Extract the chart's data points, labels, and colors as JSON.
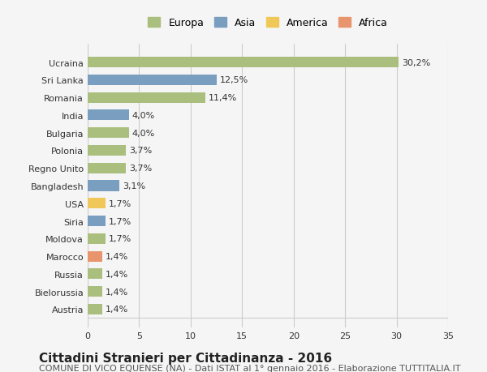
{
  "categories": [
    "Austria",
    "Bielorussia",
    "Russia",
    "Marocco",
    "Moldova",
    "Siria",
    "USA",
    "Bangladesh",
    "Regno Unito",
    "Polonia",
    "Bulgaria",
    "India",
    "Romania",
    "Sri Lanka",
    "Ucraina"
  ],
  "values": [
    1.4,
    1.4,
    1.4,
    1.4,
    1.7,
    1.7,
    1.7,
    3.1,
    3.7,
    3.7,
    4.0,
    4.0,
    11.4,
    12.5,
    30.2
  ],
  "labels": [
    "1,4%",
    "1,4%",
    "1,4%",
    "1,4%",
    "1,7%",
    "1,7%",
    "1,7%",
    "3,1%",
    "3,7%",
    "3,7%",
    "4,0%",
    "4,0%",
    "11,4%",
    "12,5%",
    "30,2%"
  ],
  "continents": [
    "Europa",
    "Europa",
    "Europa",
    "Africa",
    "Europa",
    "Asia",
    "America",
    "Asia",
    "Europa",
    "Europa",
    "Europa",
    "Asia",
    "Europa",
    "Asia",
    "Europa"
  ],
  "colors": {
    "Europa": "#aabf7e",
    "Asia": "#7a9ec0",
    "America": "#f0c85a",
    "Africa": "#e8956d"
  },
  "legend_order": [
    "Europa",
    "Asia",
    "America",
    "Africa"
  ],
  "title": "Cittadini Stranieri per Cittadinanza - 2016",
  "subtitle": "COMUNE DI VICO EQUENSE (NA) - Dati ISTAT al 1° gennaio 2016 - Elaborazione TUTTITALIA.IT",
  "xlim": [
    0,
    35
  ],
  "xticks": [
    0,
    5,
    10,
    15,
    20,
    25,
    30,
    35
  ],
  "background_color": "#f5f5f5",
  "bar_background": "#ffffff",
  "grid_color": "#cccccc",
  "title_fontsize": 11,
  "subtitle_fontsize": 8,
  "label_fontsize": 8,
  "tick_fontsize": 8
}
